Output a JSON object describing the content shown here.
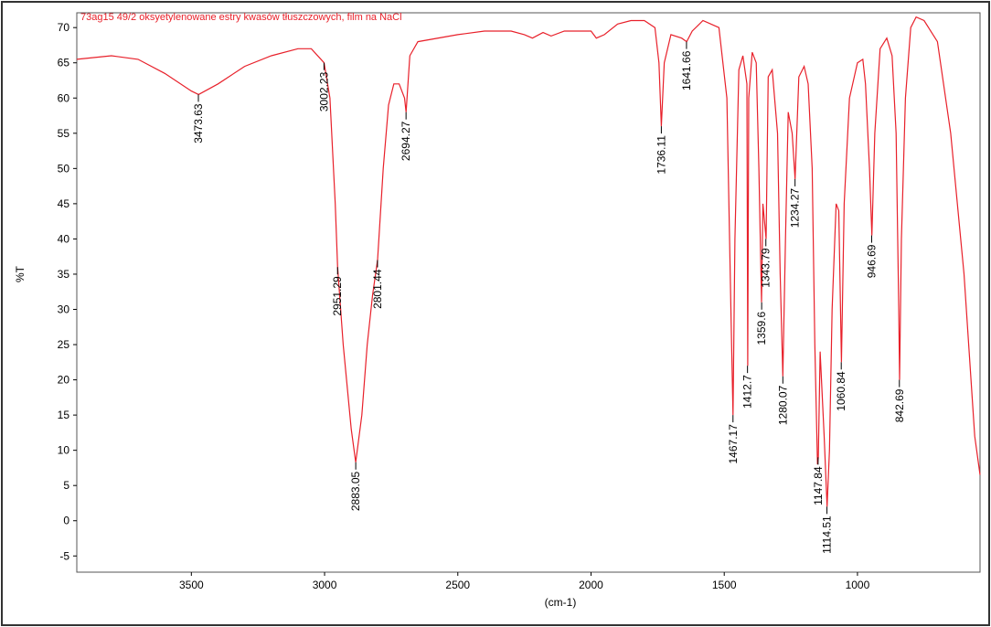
{
  "chart_data": {
    "type": "line",
    "title": "73ag15 49/2 oksyetylenowane estry kwasów tłuszczowych, film na NaCl",
    "xlabel": "(cm-1)",
    "ylabel": "%T",
    "xlim": [
      3930,
      540
    ],
    "ylim": [
      -7.3,
      72.1
    ],
    "xticks": [
      3500,
      3000,
      2500,
      2000,
      1500,
      1000
    ],
    "yticks": [
      -5,
      0,
      5,
      10,
      15,
      20,
      25,
      30,
      35,
      40,
      45,
      50,
      55,
      60,
      65,
      70
    ],
    "series": [
      {
        "name": "73ag15 49/2",
        "color": "#e8202a",
        "x": [
          3930,
          3800,
          3700,
          3600,
          3500,
          3473,
          3400,
          3300,
          3200,
          3100,
          3050,
          3002,
          2980,
          2960,
          2951,
          2930,
          2900,
          2883,
          2860,
          2840,
          2820,
          2801,
          2780,
          2760,
          2740,
          2720,
          2700,
          2694,
          2680,
          2650,
          2500,
          2400,
          2300,
          2250,
          2220,
          2180,
          2150,
          2100,
          2000,
          1980,
          1950,
          1900,
          1850,
          1800,
          1760,
          1745,
          1736,
          1725,
          1700,
          1660,
          1641,
          1620,
          1580,
          1520,
          1490,
          1475,
          1467,
          1460,
          1445,
          1430,
          1415,
          1412,
          1408,
          1395,
          1380,
          1370,
          1360,
          1355,
          1343,
          1335,
          1320,
          1300,
          1290,
          1280,
          1270,
          1260,
          1245,
          1234,
          1220,
          1200,
          1185,
          1170,
          1160,
          1150,
          1147,
          1140,
          1125,
          1114,
          1105,
          1095,
          1080,
          1070,
          1060,
          1050,
          1030,
          1000,
          980,
          970,
          955,
          946,
          935,
          915,
          890,
          870,
          855,
          845,
          842,
          835,
          820,
          800,
          780,
          750,
          700,
          650,
          600,
          560,
          540
        ],
        "values": [
          65.5,
          66,
          65.5,
          63.5,
          61,
          60.5,
          62,
          64.5,
          66,
          67,
          67,
          65,
          60,
          45,
          36,
          25,
          13,
          8.3,
          15,
          25,
          32,
          37,
          50,
          59,
          62,
          62,
          60,
          58,
          66,
          68,
          69,
          69.5,
          69.5,
          69,
          68.5,
          69.3,
          68.8,
          69.5,
          69.5,
          68.5,
          69,
          70.5,
          71,
          71,
          70,
          65,
          56,
          65,
          69,
          68.5,
          68,
          69.5,
          71,
          70,
          60,
          30,
          15,
          40,
          64,
          66,
          62,
          22,
          60,
          66.5,
          65,
          50,
          31,
          45,
          40,
          63,
          64,
          55,
          35,
          20.5,
          40,
          58,
          55,
          48.5,
          63,
          64.5,
          62,
          50,
          25,
          8,
          9,
          24,
          12,
          2,
          10,
          30,
          45,
          44,
          22.5,
          45,
          60,
          65,
          65.5,
          62,
          50,
          40.5,
          55,
          67,
          68.5,
          66,
          55,
          30,
          20,
          40,
          60,
          70,
          71.5,
          71,
          68,
          55,
          35,
          12,
          6.5
        ]
      }
    ],
    "peaks": [
      {
        "x": 3473.63,
        "y": 60.5
      },
      {
        "x": 3002.23,
        "y": 65
      },
      {
        "x": 2951.29,
        "y": 36
      },
      {
        "x": 2883.05,
        "y": 8.3
      },
      {
        "x": 2801.44,
        "y": 37
      },
      {
        "x": 2694.27,
        "y": 58
      },
      {
        "x": 1736.11,
        "y": 56
      },
      {
        "x": 1641.66,
        "y": 68
      },
      {
        "x": 1467.17,
        "y": 15
      },
      {
        "x": 1412.7,
        "y": 22
      },
      {
        "x": 1359.6,
        "y": 31
      },
      {
        "x": 1343.79,
        "y": 40
      },
      {
        "x": 1280.07,
        "y": 20.5
      },
      {
        "x": 1234.27,
        "y": 48.5
      },
      {
        "x": 1147.84,
        "y": 9
      },
      {
        "x": 1114.51,
        "y": 2
      },
      {
        "x": 1060.84,
        "y": 22.5
      },
      {
        "x": 946.69,
        "y": 40.5
      },
      {
        "x": 842.69,
        "y": 20
      }
    ],
    "grid": false
  }
}
